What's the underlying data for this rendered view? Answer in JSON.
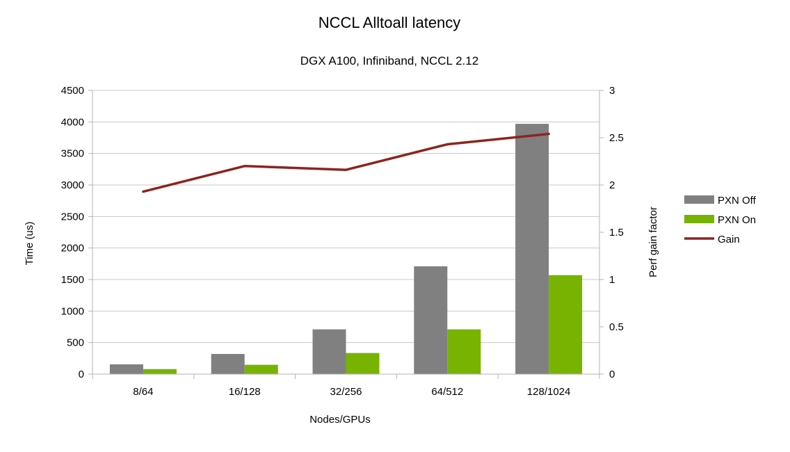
{
  "chart_data": {
    "type": "bar",
    "title": "NCCL Alltoall latency",
    "subtitle": "DGX A100, Infiniband, NCCL 2.12",
    "xlabel": "Nodes/GPUs",
    "ylabel": "Time (us)",
    "y2label": "Perf gain factor",
    "categories": [
      "8/64",
      "16/128",
      "32/256",
      "64/512",
      "128/1024"
    ],
    "ylim": [
      0,
      4500
    ],
    "yticks": [
      "0",
      "500",
      "1000",
      "1500",
      "2000",
      "2500",
      "3000",
      "3500",
      "4000",
      "4500"
    ],
    "y2lim": [
      0,
      3
    ],
    "y2ticks": [
      "0",
      "0.5",
      "1",
      "1.5",
      "2",
      "2.5",
      "3"
    ],
    "grid": true,
    "legend_position": "right",
    "series": [
      {
        "name": "PXN Off",
        "type": "bar",
        "axis": "left",
        "color": "#808080",
        "values": [
          155,
          320,
          710,
          1710,
          3970
        ]
      },
      {
        "name": "PXN On",
        "type": "bar",
        "axis": "left",
        "color": "#77b300",
        "values": [
          80,
          148,
          335,
          710,
          1570
        ]
      },
      {
        "name": "Gain",
        "type": "line",
        "axis": "right",
        "color": "#8b2520",
        "values": [
          1.93,
          2.2,
          2.16,
          2.43,
          2.54
        ]
      }
    ]
  }
}
